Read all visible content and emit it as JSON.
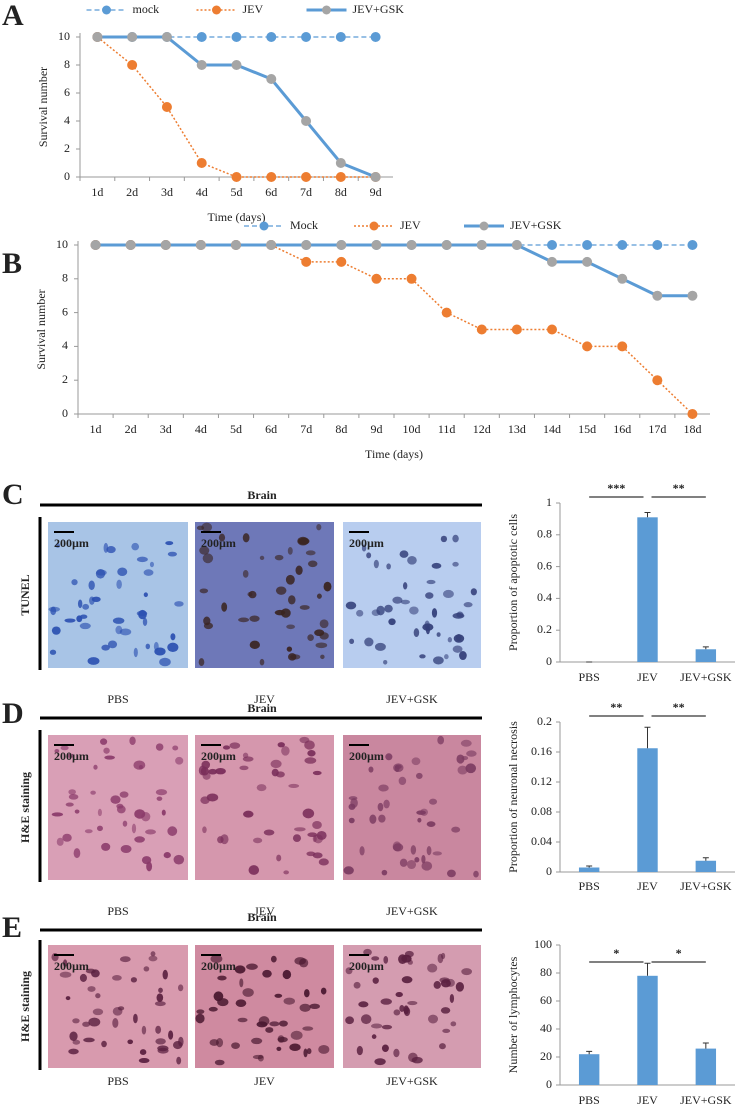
{
  "chart_data": [
    {
      "panel": "A",
      "type": "line",
      "categories": [
        "1d",
        "2d",
        "3d",
        "4d",
        "5d",
        "6d",
        "7d",
        "8d",
        "9d"
      ],
      "series": [
        {
          "name": "mock",
          "color": "#5b9bd5",
          "marker_color": "#5b9bd5",
          "line_style": "dashed",
          "values": [
            10,
            10,
            10,
            10,
            10,
            10,
            10,
            10,
            10
          ]
        },
        {
          "name": "JEV",
          "color": "#ed7d31",
          "marker_color": "#ed7d31",
          "line_style": "dotted",
          "values": [
            10,
            8,
            5,
            1,
            0,
            0,
            0,
            0,
            0
          ]
        },
        {
          "name": "JEV+GSK",
          "color": "#5b9bd5",
          "marker_color": "#a5a5a5",
          "line_style": "solid",
          "values": [
            10,
            10,
            10,
            8,
            8,
            7,
            4,
            1,
            0
          ]
        }
      ],
      "ylim": [
        0,
        10
      ],
      "yticks": [
        0,
        2,
        4,
        6,
        8,
        10
      ],
      "xlabel": "Time (days)",
      "ylabel": "Survival number"
    },
    {
      "panel": "B",
      "type": "line",
      "categories": [
        "1d",
        "2d",
        "3d",
        "4d",
        "5d",
        "6d",
        "7d",
        "8d",
        "9d",
        "10d",
        "11d",
        "12d",
        "13d",
        "14d",
        "15d",
        "16d",
        "17d",
        "18d"
      ],
      "series": [
        {
          "name": "Mock",
          "color": "#5b9bd5",
          "marker_color": "#5b9bd5",
          "line_style": "dashed",
          "values": [
            10,
            10,
            10,
            10,
            10,
            10,
            10,
            10,
            10,
            10,
            10,
            10,
            10,
            10,
            10,
            10,
            10,
            10
          ]
        },
        {
          "name": "JEV",
          "color": "#ed7d31",
          "marker_color": "#ed7d31",
          "line_style": "dotted",
          "values": [
            10,
            10,
            10,
            10,
            10,
            10,
            9,
            9,
            8,
            8,
            6,
            5,
            5,
            5,
            4,
            4,
            2,
            0
          ]
        },
        {
          "name": "JEV+GSK",
          "color": "#5b9bd5",
          "marker_color": "#a5a5a5",
          "line_style": "solid",
          "values": [
            10,
            10,
            10,
            10,
            10,
            10,
            10,
            10,
            10,
            10,
            10,
            10,
            10,
            9,
            9,
            8,
            7,
            7
          ]
        }
      ],
      "ylim": [
        0,
        10
      ],
      "yticks": [
        0,
        2,
        4,
        6,
        8,
        10
      ],
      "xlabel": "Time (days)",
      "ylabel": "Survival number"
    },
    {
      "panel": "C",
      "type": "bar",
      "images": {
        "title": "Brain",
        "row_label": "TUNEL",
        "scale_bar": "200µm",
        "captions": [
          "PBS",
          "JEV",
          "JEV+GSK"
        ]
      },
      "categories": [
        "PBS",
        "JEV",
        "JEV+GSK"
      ],
      "values": [
        0,
        0.91,
        0.08
      ],
      "errors": [
        0,
        0.03,
        0.015
      ],
      "color": "#5b9bd5",
      "ylim": [
        0,
        1
      ],
      "yticks": [
        0,
        0.2,
        0.4,
        0.6,
        0.8,
        1
      ],
      "ylabel": "Proportion of apoptotic cells",
      "significance": [
        "***",
        "**"
      ]
    },
    {
      "panel": "D",
      "type": "bar",
      "images": {
        "title": "Brain",
        "row_label": "H&E staining",
        "scale_bar": "200µm",
        "captions": [
          "PBS",
          "JEV",
          "JEV+GSK"
        ]
      },
      "categories": [
        "PBS",
        "JEV",
        "JEV+GSK"
      ],
      "values": [
        0.006,
        0.165,
        0.015
      ],
      "errors": [
        0.002,
        0.028,
        0.004
      ],
      "color": "#5b9bd5",
      "ylim": [
        0,
        0.2
      ],
      "yticks": [
        0,
        0.04,
        0.08,
        0.12,
        0.16,
        0.2
      ],
      "ylabel": "Proportion of neuronal necrosis",
      "significance": [
        "**",
        "**"
      ]
    },
    {
      "panel": "E",
      "type": "bar",
      "images": {
        "title": "Brain",
        "row_label": "H&E staining",
        "scale_bar": "200µm",
        "captions": [
          "PBS",
          "JEV",
          "JEV+GSK"
        ]
      },
      "categories": [
        "PBS",
        "JEV",
        "JEV+GSK"
      ],
      "values": [
        22,
        78,
        26
      ],
      "errors": [
        2,
        9,
        4
      ],
      "color": "#5b9bd5",
      "ylim": [
        0,
        100
      ],
      "yticks": [
        0,
        20,
        40,
        60,
        80,
        100
      ],
      "ylabel": "Number of lymphocytes",
      "significance": [
        "*",
        "*"
      ]
    }
  ]
}
